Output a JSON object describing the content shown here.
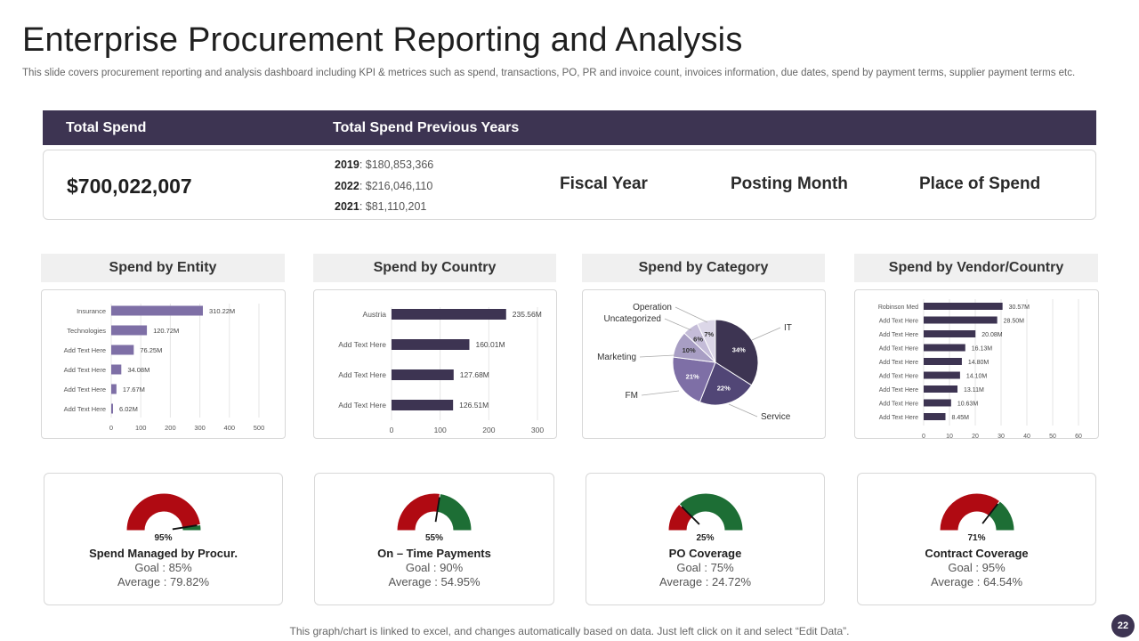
{
  "page": {
    "title": "Enterprise Procurement Reporting and Analysis",
    "subtitle": "This slide covers procurement reporting and analysis dashboard including KPI & metrices such as spend, transactions, PO, PR and invoice count, invoices information, due dates, spend by payment terms, supplier payment terms etc.",
    "footer": "This graph/chart is linked to excel,  and changes automatically based on data. Just left click on it and select “Edit Data”.",
    "page_number": "22"
  },
  "colors": {
    "header": "#3d3452",
    "bar_light": "#7e6fa6",
    "bar_dark": "#3d3452",
    "gauge_red": "#b00a12",
    "gauge_green": "#1d6e35"
  },
  "spend": {
    "total_label": "Total Spend",
    "previous_label": "Total Spend Previous Years",
    "total_value": "$700,022,007",
    "previous": [
      {
        "year": "2019",
        "value": "$180,853,366"
      },
      {
        "year": "2022",
        "value": "$216,046,110"
      },
      {
        "year": "2021",
        "value": "$81,110,201"
      }
    ],
    "filters": [
      "Fiscal Year",
      "Posting Month",
      "Place of Spend"
    ]
  },
  "panels": {
    "entity": "Spend by Entity",
    "country": "Spend by Country",
    "category": "Spend by Category",
    "vendor": "Spend by Vendor/Country"
  },
  "chart_data": [
    {
      "type": "bar",
      "orientation": "horizontal",
      "title": "Spend by Entity",
      "categories": [
        "Insurance",
        "Technologies",
        "Add Text Here",
        "Add Text Here",
        "Add Text Here",
        "Add Text Here"
      ],
      "values": [
        310.22,
        120.72,
        76.25,
        34.08,
        17.67,
        6.02
      ],
      "labels": [
        "310.22M",
        "120.72M",
        "76.25M",
        "34.08M",
        "17.67M",
        "6.02M"
      ],
      "xticks": [
        "0",
        "100",
        "200",
        "300",
        "400",
        "500"
      ],
      "xlim": [
        0,
        500
      ]
    },
    {
      "type": "bar",
      "orientation": "horizontal",
      "title": "Spend by Country",
      "categories": [
        "Austria",
        "Add Text Here",
        "Add Text Here",
        "Add Text Here"
      ],
      "values": [
        235.56,
        160.01,
        127.68,
        126.51
      ],
      "labels": [
        "235.56M",
        "160.01M",
        "127.68M",
        "126.51M"
      ],
      "xticks": [
        "0",
        "100",
        "200",
        "300"
      ],
      "xlim": [
        0,
        300
      ]
    },
    {
      "type": "pie",
      "title": "Spend by Category",
      "categories": [
        "IT",
        "Service",
        "FM",
        "Marketing",
        "Uncategorized",
        "Operation"
      ],
      "values": [
        34,
        22,
        21,
        10,
        6,
        7
      ],
      "labels": [
        "34%",
        "22%",
        "21%",
        "10%",
        "6%",
        "7%"
      ]
    },
    {
      "type": "bar",
      "orientation": "horizontal",
      "title": "Spend by Vendor/Country",
      "categories": [
        "Robinson Med",
        "Add Text Here",
        "Add Text Here",
        "Add Text Here",
        "Add Text Here",
        "Add Text Here",
        "Add Text Here",
        "Add Text Here",
        "Add Text Here"
      ],
      "values": [
        30.57,
        28.5,
        20.08,
        16.13,
        14.8,
        14.1,
        13.11,
        10.63,
        8.45
      ],
      "labels": [
        "30.57M",
        "28.50M",
        "20.08M",
        "16.13M",
        "14.80M",
        "14.10M",
        "13.11M",
        "10.63M",
        "8.45M"
      ],
      "xticks": [
        "0",
        "10",
        "20",
        "30",
        "40",
        "50",
        "60"
      ],
      "xlim": [
        0,
        60
      ]
    }
  ],
  "gauges": [
    {
      "pct": 95,
      "pct_label": "95%",
      "label": "Spend Managed by Procur.",
      "goal": "Goal  : 85%",
      "average": "Average   : 79.82%"
    },
    {
      "pct": 55,
      "pct_label": "55%",
      "label": "On – Time Payments",
      "goal": "Goal  : 90%",
      "average": "Average   : 54.95%"
    },
    {
      "pct": 25,
      "pct_label": "25%",
      "label": "PO Coverage",
      "goal": "Goal  : 75%",
      "average": "Average   : 24.72%"
    },
    {
      "pct": 71,
      "pct_label": "71%",
      "label": "Contract Coverage",
      "goal": "Goal  : 95%",
      "average": "Average   : 64.54%"
    }
  ]
}
